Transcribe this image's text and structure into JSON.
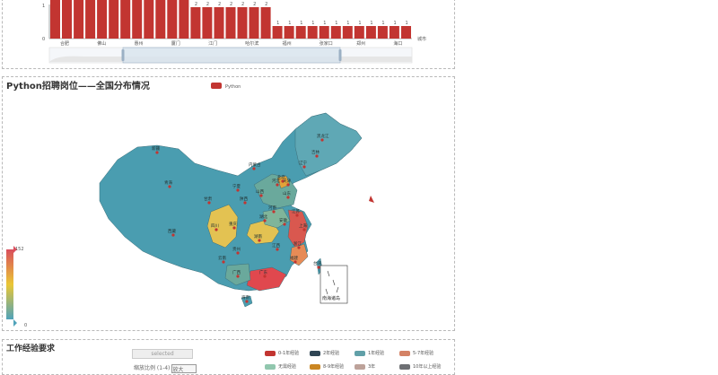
{
  "bar_panel": {
    "axis_name": "城市",
    "categories": [
      "合肥",
      "佛山",
      "惠州",
      "厦门",
      "江门",
      "哈尔滨",
      "福州",
      "张家口",
      "郑州",
      "海口"
    ],
    "value_labels": [
      "2",
      "2",
      "2",
      "2",
      "2",
      "2",
      "2",
      "1",
      "1",
      "1",
      "1",
      "1",
      "1",
      "1",
      "1",
      "1",
      "1",
      "1",
      "1"
    ],
    "y_ticks": [
      "1",
      "0"
    ],
    "accent": "#c23531"
  },
  "map_panel": {
    "title": "Python招聘岗位——全国分布情况",
    "legend": "Python",
    "legend_color": "#c23531",
    "visual_max": "152",
    "visual_min": "0",
    "south_sea_label": "南海诸岛",
    "province_labels": [
      "新疆",
      "西藏",
      "青海",
      "甘肃",
      "四川",
      "云南",
      "贵州",
      "广西",
      "广东",
      "湖南",
      "湖北",
      "河南",
      "山西",
      "陕西",
      "内蒙古",
      "黑龙江",
      "吉林",
      "辽宁",
      "河北",
      "山东",
      "江苏",
      "浙江",
      "安徽",
      "江西",
      "福建",
      "重庆",
      "宁夏",
      "北京",
      "天津",
      "上海",
      "海南",
      "台湾"
    ]
  },
  "exp_panel": {
    "title": "工作经验要求",
    "btn_label": "selected",
    "input_text": "缩放比例 (1-4)",
    "input_value": "放大",
    "legend": [
      {
        "label": "0-1年经验",
        "color": "#c23531"
      },
      {
        "label": "2年经验",
        "color": "#2f4554"
      },
      {
        "label": "1年经验",
        "color": "#61a0a8"
      },
      {
        "label": "5-7年经验",
        "color": "#d48265"
      },
      {
        "label": "无需经验",
        "color": "#91c7ae"
      },
      {
        "label": "8-9年经验",
        "color": "#ca8622"
      },
      {
        "label": "3年",
        "color": "#bda29a"
      },
      {
        "label": "10年以上经验",
        "color": "#6e7074"
      }
    ]
  }
}
